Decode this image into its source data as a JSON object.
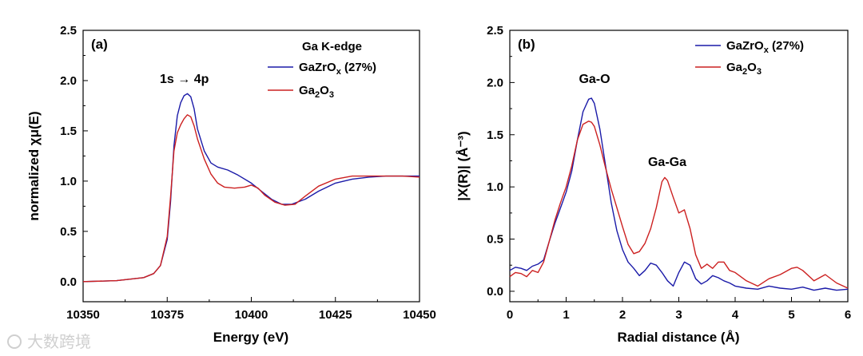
{
  "chart_data": [
    {
      "type": "line",
      "panel_label": "(a)",
      "xlabel": "Energy (eV)",
      "ylabel": "normalized χμ(E)",
      "xlim": [
        10350,
        10450
      ],
      "ylim": [
        -0.2,
        2.5
      ],
      "xticks": [
        10350,
        10375,
        10400,
        10425,
        10450
      ],
      "xtick_labels": [
        "10350",
        "10375",
        "10400",
        "10425",
        "10450"
      ],
      "yticks": [
        0.0,
        0.5,
        1.0,
        1.5,
        2.0,
        2.5
      ],
      "ytick_labels": [
        "0.0",
        "0.5",
        "1.0",
        "1.5",
        "2.0",
        "2.5"
      ],
      "legend_title": "Ga K-edge",
      "legend_position": "top-right",
      "annotation": {
        "text": "1s → 4p",
        "x": 10381,
        "y": 2.0
      },
      "series": [
        {
          "name": "GaZrOx (27%)",
          "color": "#1a1aa8",
          "x": [
            10350,
            10360,
            10368,
            10371,
            10373,
            10375,
            10376,
            10377,
            10378,
            10379,
            10380,
            10381,
            10382,
            10383,
            10384,
            10386,
            10388,
            10390,
            10393,
            10396,
            10400,
            10403,
            10406,
            10409,
            10412,
            10416,
            10420,
            10425,
            10430,
            10435,
            10440,
            10445,
            10450
          ],
          "y": [
            0.0,
            0.01,
            0.04,
            0.08,
            0.16,
            0.42,
            0.8,
            1.35,
            1.65,
            1.78,
            1.85,
            1.87,
            1.84,
            1.72,
            1.52,
            1.3,
            1.18,
            1.14,
            1.11,
            1.06,
            0.98,
            0.9,
            0.82,
            0.77,
            0.77,
            0.82,
            0.9,
            0.98,
            1.02,
            1.04,
            1.05,
            1.05,
            1.05
          ]
        },
        {
          "name": "Ga2O3",
          "color": "#cc2020",
          "x": [
            10350,
            10360,
            10368,
            10371,
            10373,
            10375,
            10376,
            10377,
            10378,
            10379,
            10380,
            10381,
            10382,
            10383,
            10384,
            10386,
            10388,
            10390,
            10392,
            10395,
            10398,
            10400,
            10402,
            10404,
            10407,
            10410,
            10413,
            10416,
            10420,
            10425,
            10430,
            10435,
            10440,
            10445,
            10450
          ],
          "y": [
            0.0,
            0.01,
            0.04,
            0.08,
            0.16,
            0.45,
            0.85,
            1.3,
            1.48,
            1.56,
            1.62,
            1.66,
            1.64,
            1.55,
            1.42,
            1.22,
            1.07,
            0.98,
            0.94,
            0.93,
            0.94,
            0.96,
            0.93,
            0.86,
            0.79,
            0.76,
            0.77,
            0.85,
            0.95,
            1.02,
            1.05,
            1.05,
            1.05,
            1.05,
            1.04
          ]
        }
      ]
    },
    {
      "type": "line",
      "panel_label": "(b)",
      "xlabel": "Radial distance (Å)",
      "ylabel": "|X(R)| (Å⁻³)",
      "xlim": [
        0,
        6
      ],
      "ylim": [
        -0.1,
        2.5
      ],
      "xticks": [
        0,
        1,
        2,
        3,
        4,
        5,
        6
      ],
      "xtick_labels": [
        "0",
        "1",
        "2",
        "3",
        "4",
        "5",
        "6"
      ],
      "yticks": [
        0.0,
        0.5,
        1.0,
        1.5,
        2.0,
        2.5
      ],
      "ytick_labels": [
        "0.0",
        "0.5",
        "1.0",
        "1.5",
        "2.0",
        "2.5"
      ],
      "legend_position": "top-right",
      "annotations": [
        {
          "text": "Ga-O",
          "x": 1.45,
          "y": 1.95
        },
        {
          "text": "Ga-Ga",
          "x": 2.75,
          "y": 1.2
        }
      ],
      "series": [
        {
          "name": "GaZrOx (27%)",
          "color": "#1a1aa8",
          "x": [
            0,
            0.1,
            0.2,
            0.3,
            0.4,
            0.5,
            0.6,
            0.7,
            0.8,
            0.9,
            1.0,
            1.1,
            1.2,
            1.3,
            1.4,
            1.45,
            1.5,
            1.6,
            1.7,
            1.8,
            1.9,
            2.0,
            2.1,
            2.2,
            2.3,
            2.4,
            2.5,
            2.6,
            2.7,
            2.8,
            2.9,
            3.0,
            3.1,
            3.2,
            3.3,
            3.4,
            3.5,
            3.6,
            3.7,
            3.8,
            3.9,
            4.0,
            4.2,
            4.4,
            4.6,
            4.8,
            5.0,
            5.2,
            5.4,
            5.6,
            5.8,
            6.0
          ],
          "y": [
            0.2,
            0.23,
            0.22,
            0.2,
            0.24,
            0.26,
            0.3,
            0.48,
            0.65,
            0.8,
            0.95,
            1.15,
            1.45,
            1.72,
            1.84,
            1.85,
            1.8,
            1.55,
            1.2,
            0.85,
            0.58,
            0.4,
            0.28,
            0.22,
            0.15,
            0.2,
            0.27,
            0.25,
            0.18,
            0.1,
            0.05,
            0.18,
            0.28,
            0.25,
            0.12,
            0.07,
            0.1,
            0.15,
            0.13,
            0.1,
            0.08,
            0.05,
            0.03,
            0.02,
            0.05,
            0.03,
            0.02,
            0.04,
            0.01,
            0.03,
            0.01,
            0.02
          ]
        },
        {
          "name": "Ga2O3",
          "color": "#cc2020",
          "x": [
            0,
            0.1,
            0.2,
            0.3,
            0.4,
            0.5,
            0.6,
            0.7,
            0.8,
            0.9,
            1.0,
            1.1,
            1.2,
            1.3,
            1.4,
            1.45,
            1.5,
            1.6,
            1.7,
            1.8,
            1.9,
            2.0,
            2.1,
            2.2,
            2.3,
            2.4,
            2.5,
            2.6,
            2.7,
            2.75,
            2.8,
            2.9,
            3.0,
            3.1,
            3.2,
            3.3,
            3.4,
            3.5,
            3.6,
            3.7,
            3.8,
            3.9,
            4.0,
            4.2,
            4.4,
            4.6,
            4.8,
            5.0,
            5.1,
            5.2,
            5.4,
            5.6,
            5.8,
            6.0
          ],
          "y": [
            0.14,
            0.18,
            0.17,
            0.14,
            0.2,
            0.18,
            0.28,
            0.48,
            0.68,
            0.85,
            1.0,
            1.2,
            1.45,
            1.6,
            1.63,
            1.62,
            1.58,
            1.4,
            1.18,
            0.98,
            0.8,
            0.62,
            0.45,
            0.36,
            0.38,
            0.46,
            0.6,
            0.8,
            1.05,
            1.09,
            1.06,
            0.9,
            0.75,
            0.78,
            0.6,
            0.35,
            0.22,
            0.26,
            0.22,
            0.28,
            0.28,
            0.2,
            0.18,
            0.1,
            0.05,
            0.12,
            0.16,
            0.22,
            0.23,
            0.2,
            0.1,
            0.16,
            0.08,
            0.03
          ]
        }
      ]
    }
  ],
  "watermark": "大数跨境"
}
